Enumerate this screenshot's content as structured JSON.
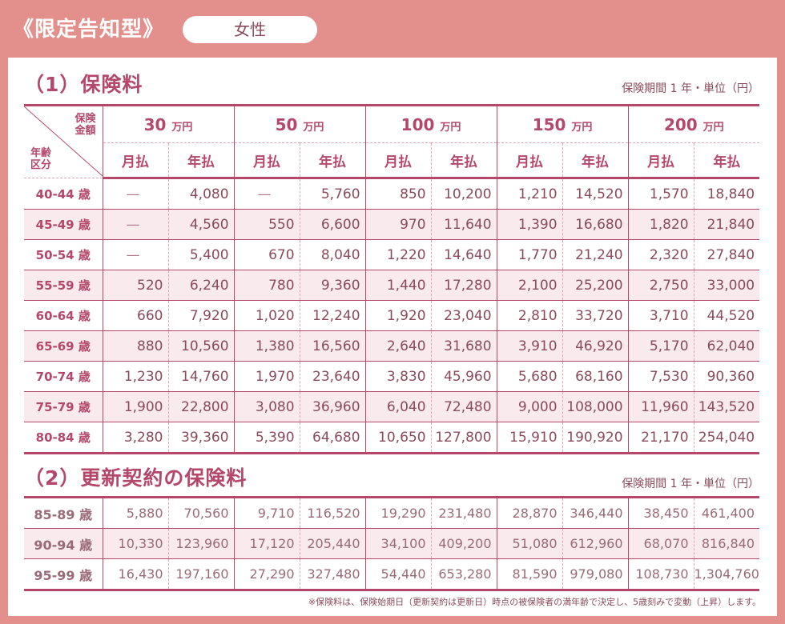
{
  "header": {
    "title": "《限定告知型》",
    "gender": "女性"
  },
  "section1": {
    "title": "（1）保険料",
    "unit": "保険期間 1 年・単位（円）"
  },
  "section2": {
    "title": "（2）更新契約の保険料",
    "unit": "保険期間 1 年・単位（円）"
  },
  "corner": {
    "top1": "保険",
    "top2": "金額",
    "bot1": "年齢",
    "bot2": "区分"
  },
  "amounts": [
    {
      "num": "30",
      "unit": "万円"
    },
    {
      "num": "50",
      "unit": "万円"
    },
    {
      "num": "100",
      "unit": "万円"
    },
    {
      "num": "150",
      "unit": "万円"
    },
    {
      "num": "200",
      "unit": "万円"
    }
  ],
  "pay_labels": {
    "monthly": "月払",
    "annual": "年払"
  },
  "table1_rows": [
    {
      "age": "40-44 歳",
      "v": [
        "—",
        "4,080",
        "—",
        "5,760",
        "850",
        "10,200",
        "1,210",
        "14,520",
        "1,570",
        "18,840"
      ]
    },
    {
      "age": "45-49 歳",
      "v": [
        "—",
        "4,560",
        "550",
        "6,600",
        "970",
        "11,640",
        "1,390",
        "16,680",
        "1,820",
        "21,840"
      ]
    },
    {
      "age": "50-54 歳",
      "v": [
        "—",
        "5,400",
        "670",
        "8,040",
        "1,220",
        "14,640",
        "1,770",
        "21,240",
        "2,320",
        "27,840"
      ]
    },
    {
      "age": "55-59 歳",
      "v": [
        "520",
        "6,240",
        "780",
        "9,360",
        "1,440",
        "17,280",
        "2,100",
        "25,200",
        "2,750",
        "33,000"
      ]
    },
    {
      "age": "60-64 歳",
      "v": [
        "660",
        "7,920",
        "1,020",
        "12,240",
        "1,920",
        "23,040",
        "2,810",
        "33,720",
        "3,710",
        "44,520"
      ]
    },
    {
      "age": "65-69 歳",
      "v": [
        "880",
        "10,560",
        "1,380",
        "16,560",
        "2,640",
        "31,680",
        "3,910",
        "46,920",
        "5,170",
        "62,040"
      ]
    },
    {
      "age": "70-74 歳",
      "v": [
        "1,230",
        "14,760",
        "1,970",
        "23,640",
        "3,830",
        "45,960",
        "5,680",
        "68,160",
        "7,530",
        "90,360"
      ]
    },
    {
      "age": "75-79 歳",
      "v": [
        "1,900",
        "22,800",
        "3,080",
        "36,960",
        "6,040",
        "72,480",
        "9,000",
        "108,000",
        "11,960",
        "143,520"
      ]
    },
    {
      "age": "80-84 歳",
      "v": [
        "3,280",
        "39,360",
        "5,390",
        "64,680",
        "10,650",
        "127,800",
        "15,910",
        "190,920",
        "21,170",
        "254,040"
      ]
    }
  ],
  "table2_rows": [
    {
      "age": "85-89 歳",
      "v": [
        "5,880",
        "70,560",
        "9,710",
        "116,520",
        "19,290",
        "231,480",
        "28,870",
        "346,440",
        "38,450",
        "461,400"
      ]
    },
    {
      "age": "90-94 歳",
      "v": [
        "10,330",
        "123,960",
        "17,120",
        "205,440",
        "34,100",
        "409,200",
        "51,080",
        "612,960",
        "68,070",
        "816,840"
      ]
    },
    {
      "age": "95-99 歳",
      "v": [
        "16,430",
        "197,160",
        "27,290",
        "327,480",
        "54,440",
        "653,280",
        "81,590",
        "979,080",
        "108,730",
        "1,304,760"
      ]
    }
  ],
  "footnote": "※保険料は、保険始期日（更新契約は更新日）時点の被保険者の満年齢で決定し、5歳刻みで変動（上昇）します。"
}
